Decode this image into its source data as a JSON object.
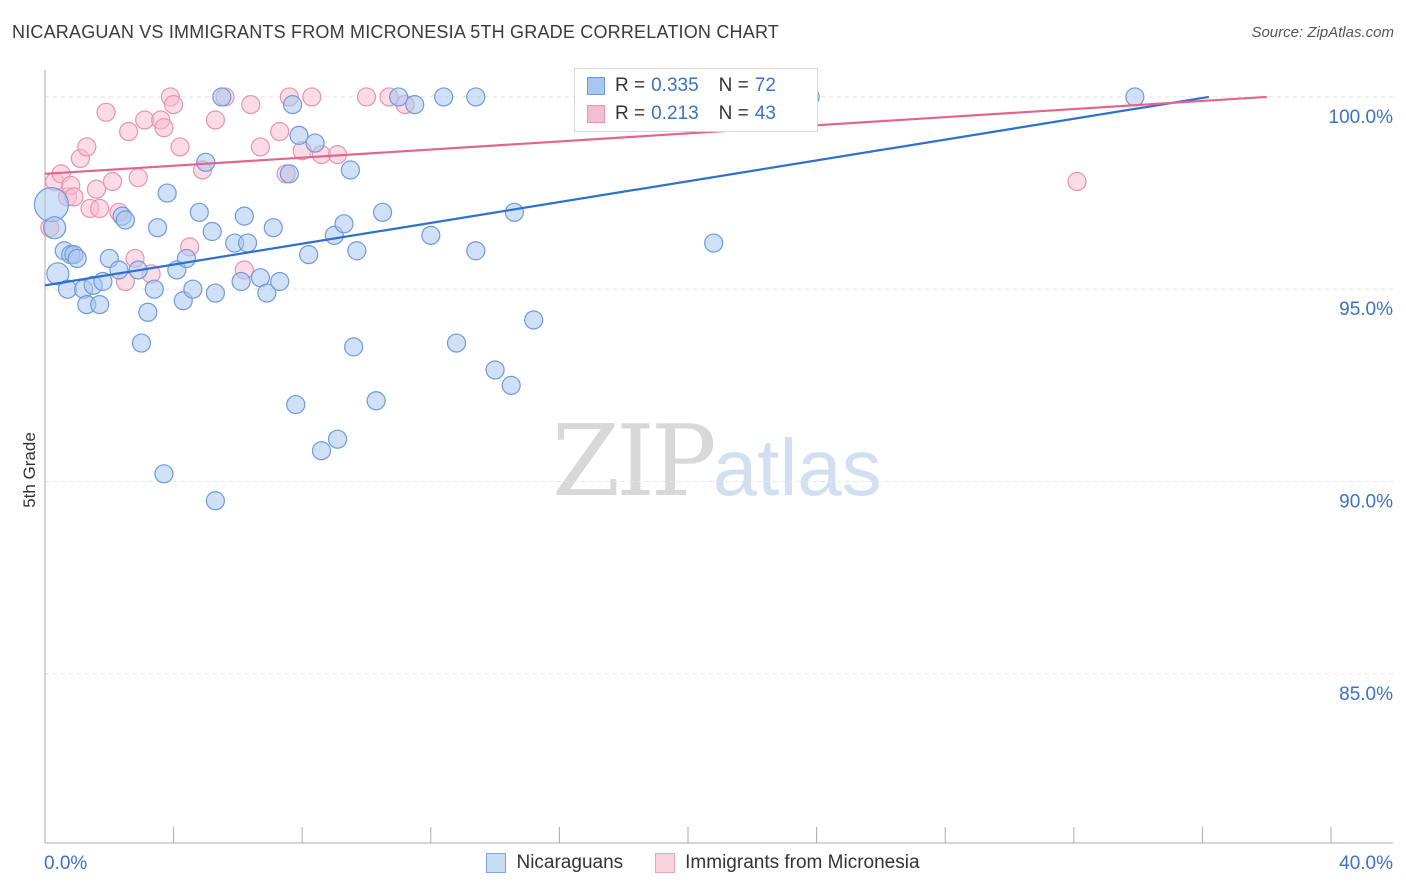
{
  "header": {
    "title": "NICARAGUAN VS IMMIGRANTS FROM MICRONESIA 5TH GRADE CORRELATION CHART",
    "source": "Source: ZipAtlas.com"
  },
  "watermark": {
    "part1": "ZIP",
    "part2": "atlas"
  },
  "legend": {
    "r_label": "R =",
    "n_label": "N =",
    "series1": {
      "r": "0.335",
      "n": "72"
    },
    "series2": {
      "r": "0.213",
      "n": "43"
    }
  },
  "bottom_legend": {
    "series1": "Nicaraguans",
    "series2": "Immigrants from Micronesia"
  },
  "colors": {
    "blue_fill": "#a9c6ee",
    "blue_stroke": "#6f9ad8",
    "blue_line": "#2f6fd0",
    "pink_fill": "#f6bdd1",
    "pink_stroke": "#e893b1",
    "pink_line": "#e3648f",
    "tick_label": "#3b72c6"
  },
  "chart_data": {
    "type": "scatter",
    "title": "NICARAGUAN VS IMMIGRANTS FROM MICRONESIA 5TH GRADE CORRELATION CHART",
    "xlabel": "",
    "ylabel": "5th Grade",
    "xlim": [
      0,
      40
    ],
    "ylim": [
      80.6,
      100.7
    ],
    "x_tick_labels": [
      "0.0%",
      "40.0%"
    ],
    "y_ticks": [
      85,
      90,
      95,
      100
    ],
    "y_tick_labels": [
      "85.0%",
      "90.0%",
      "95.0%",
      "100.0%"
    ],
    "grid": true,
    "series": [
      {
        "name": "Nicaraguans",
        "color": "#a9c6ee",
        "trend": [
          [
            0,
            95.1
          ],
          [
            36.2,
            100.0
          ]
        ],
        "points": [
          [
            0.2,
            97.2
          ],
          [
            0.3,
            96.6
          ],
          [
            0.4,
            95.4
          ],
          [
            0.6,
            96.0
          ],
          [
            0.7,
            95.0
          ],
          [
            0.8,
            95.9
          ],
          [
            0.9,
            95.9
          ],
          [
            1.0,
            95.8
          ],
          [
            1.2,
            95.0
          ],
          [
            1.3,
            94.6
          ],
          [
            1.5,
            95.1
          ],
          [
            1.7,
            94.6
          ],
          [
            1.8,
            95.2
          ],
          [
            2.0,
            95.8
          ],
          [
            2.3,
            95.5
          ],
          [
            2.4,
            96.9
          ],
          [
            2.5,
            96.8
          ],
          [
            2.9,
            95.5
          ],
          [
            3.0,
            93.6
          ],
          [
            3.2,
            94.4
          ],
          [
            3.4,
            95.0
          ],
          [
            3.5,
            96.6
          ],
          [
            3.8,
            97.5
          ],
          [
            3.7,
            90.2
          ],
          [
            4.1,
            95.5
          ],
          [
            4.3,
            94.7
          ],
          [
            4.4,
            95.8
          ],
          [
            4.6,
            95.0
          ],
          [
            4.8,
            97.0
          ],
          [
            5.0,
            98.3
          ],
          [
            5.2,
            96.5
          ],
          [
            5.3,
            94.9
          ],
          [
            5.3,
            89.5
          ],
          [
            5.5,
            100.0
          ],
          [
            5.9,
            96.2
          ],
          [
            6.1,
            95.2
          ],
          [
            6.2,
            96.9
          ],
          [
            6.3,
            96.2
          ],
          [
            6.7,
            95.3
          ],
          [
            6.9,
            94.9
          ],
          [
            7.1,
            96.6
          ],
          [
            7.3,
            95.2
          ],
          [
            7.6,
            98.0
          ],
          [
            7.7,
            99.8
          ],
          [
            7.9,
            99.0
          ],
          [
            8.2,
            95.9
          ],
          [
            8.4,
            98.8
          ],
          [
            7.8,
            92.0
          ],
          [
            8.6,
            90.8
          ],
          [
            9.0,
            96.4
          ],
          [
            9.1,
            91.1
          ],
          [
            9.3,
            96.7
          ],
          [
            9.5,
            98.1
          ],
          [
            9.6,
            93.5
          ],
          [
            9.7,
            96.0
          ],
          [
            10.3,
            92.1
          ],
          [
            10.5,
            97.0
          ],
          [
            11.0,
            100.0
          ],
          [
            11.5,
            99.8
          ],
          [
            12.0,
            96.4
          ],
          [
            12.4,
            100.0
          ],
          [
            12.8,
            93.6
          ],
          [
            13.4,
            96.0
          ],
          [
            13.4,
            100.0
          ],
          [
            14.0,
            92.9
          ],
          [
            14.5,
            92.5
          ],
          [
            14.6,
            97.0
          ],
          [
            15.2,
            94.2
          ],
          [
            16.8,
            100.0
          ],
          [
            20.8,
            96.2
          ],
          [
            23.8,
            100.0
          ],
          [
            33.9,
            100.0
          ]
        ]
      },
      {
        "name": "Immigrants from Micronesia",
        "color": "#f6bdd1",
        "trend": [
          [
            0,
            98.0
          ],
          [
            38.0,
            100.0
          ]
        ],
        "points": [
          [
            0.15,
            96.6
          ],
          [
            0.3,
            97.8
          ],
          [
            0.5,
            98.0
          ],
          [
            0.7,
            97.4
          ],
          [
            0.8,
            97.7
          ],
          [
            0.9,
            97.4
          ],
          [
            1.1,
            98.4
          ],
          [
            1.3,
            98.7
          ],
          [
            1.4,
            97.1
          ],
          [
            1.6,
            97.6
          ],
          [
            1.7,
            97.1
          ],
          [
            1.9,
            99.6
          ],
          [
            2.1,
            97.8
          ],
          [
            2.3,
            97.0
          ],
          [
            2.5,
            95.2
          ],
          [
            2.6,
            99.1
          ],
          [
            2.8,
            95.8
          ],
          [
            2.9,
            97.9
          ],
          [
            3.1,
            99.4
          ],
          [
            3.3,
            95.4
          ],
          [
            3.6,
            99.4
          ],
          [
            3.7,
            99.2
          ],
          [
            3.9,
            100.0
          ],
          [
            4.0,
            99.8
          ],
          [
            4.2,
            98.7
          ],
          [
            4.5,
            96.1
          ],
          [
            4.9,
            98.1
          ],
          [
            5.3,
            99.4
          ],
          [
            5.6,
            100.0
          ],
          [
            6.2,
            95.5
          ],
          [
            6.4,
            99.8
          ],
          [
            6.7,
            98.7
          ],
          [
            7.3,
            99.1
          ],
          [
            7.5,
            98.0
          ],
          [
            7.6,
            100.0
          ],
          [
            8.0,
            98.6
          ],
          [
            8.3,
            100.0
          ],
          [
            8.6,
            98.5
          ],
          [
            9.1,
            98.5
          ],
          [
            10.0,
            100.0
          ],
          [
            10.7,
            100.0
          ],
          [
            11.2,
            99.8
          ],
          [
            32.1,
            97.8
          ]
        ]
      }
    ]
  }
}
